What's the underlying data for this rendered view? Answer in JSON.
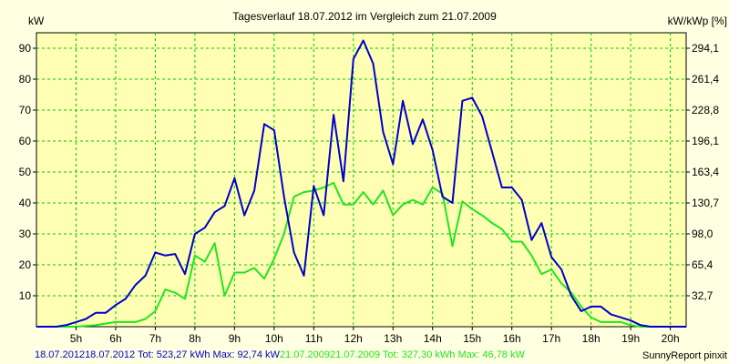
{
  "chart_data": {
    "type": "line",
    "title": "Tagesverlauf 18.07.2012 im Vergleich zum 21.07.2009",
    "ylabel_left": "kW",
    "ylabel_right": "kW/kWp [%]",
    "xlabel": "",
    "xlim": [
      4,
      20.4
    ],
    "ylim": [
      0,
      95
    ],
    "grid": true,
    "x_ticks": [
      5,
      6,
      7,
      8,
      9,
      10,
      11,
      12,
      13,
      14,
      15,
      16,
      17,
      18,
      19,
      20
    ],
    "x_tick_labels": [
      "5h",
      "6h",
      "7h",
      "8h",
      "9h",
      "10h",
      "11h",
      "12h",
      "13h",
      "14h",
      "15h",
      "16h",
      "17h",
      "18h",
      "19h",
      "20h"
    ],
    "y_ticks": [
      10,
      20,
      30,
      40,
      50,
      60,
      70,
      80,
      90
    ],
    "y_tick_labels": [
      "10",
      "20",
      "30",
      "40",
      "50",
      "60",
      "70",
      "80",
      "90"
    ],
    "y2_tick_labels": [
      "32,7",
      "65,4",
      "98,0",
      "130,7",
      "163,4",
      "196,1",
      "228,8",
      "261,4",
      "294,1"
    ],
    "series": [
      {
        "name": "18.07.2012",
        "color": "#0000c8",
        "x": [
          4.0,
          4.5,
          4.75,
          5.0,
          5.25,
          5.5,
          5.75,
          6.0,
          6.25,
          6.5,
          6.75,
          7.0,
          7.25,
          7.5,
          7.75,
          8.0,
          8.25,
          8.5,
          8.75,
          9.0,
          9.25,
          9.5,
          9.75,
          10.0,
          10.25,
          10.5,
          10.75,
          11.0,
          11.25,
          11.5,
          11.75,
          12.0,
          12.25,
          12.5,
          12.75,
          13.0,
          13.25,
          13.5,
          13.75,
          14.0,
          14.25,
          14.5,
          14.75,
          15.0,
          15.25,
          15.5,
          15.75,
          16.0,
          16.25,
          16.5,
          16.75,
          17.0,
          17.25,
          17.5,
          17.75,
          18.0,
          18.25,
          18.5,
          18.75,
          19.0,
          19.25,
          19.5,
          19.75,
          20.0,
          20.4
        ],
        "values": [
          0,
          0,
          0.5,
          1.5,
          2.5,
          4.5,
          4.5,
          7,
          9,
          13.5,
          16.5,
          24,
          23,
          23.5,
          17,
          30,
          32,
          37,
          39,
          48,
          36,
          44,
          65.5,
          63.5,
          42,
          24,
          16.5,
          45.5,
          36,
          68.5,
          47,
          86.5,
          92.5,
          85,
          63,
          52.5,
          73,
          59,
          67,
          57,
          42,
          40,
          73,
          74,
          68,
          56.5,
          45,
          45,
          41,
          28,
          33.5,
          22.5,
          18.5,
          10,
          5,
          6.5,
          6.5,
          4,
          3,
          2,
          0.5,
          0,
          0,
          0,
          0
        ],
        "total": "523,27",
        "max": "92,74"
      },
      {
        "name": "21.07.2009",
        "color": "#1ee61e",
        "x": [
          4.0,
          5.0,
          5.5,
          6.0,
          6.5,
          6.75,
          7.0,
          7.25,
          7.5,
          7.75,
          8.0,
          8.25,
          8.5,
          8.75,
          9.0,
          9.25,
          9.5,
          9.75,
          10.0,
          10.25,
          10.5,
          10.75,
          11.0,
          11.25,
          11.5,
          11.75,
          12.0,
          12.25,
          12.5,
          12.75,
          13.0,
          13.25,
          13.5,
          13.75,
          14.0,
          14.25,
          14.5,
          14.75,
          15.0,
          15.25,
          15.5,
          15.75,
          16.0,
          16.25,
          16.5,
          16.75,
          17.0,
          17.25,
          17.5,
          17.75,
          18.0,
          18.25,
          18.5,
          18.75,
          19.0,
          19.25,
          19.5,
          20.0,
          20.4
        ],
        "values": [
          0,
          0,
          0.5,
          1.5,
          1.5,
          2.5,
          5,
          12,
          11,
          9,
          23,
          21,
          27,
          10,
          17.5,
          17.5,
          19,
          15.5,
          22,
          30,
          42,
          43.5,
          44,
          45,
          46.5,
          39.5,
          39.5,
          43.5,
          39.5,
          44,
          36,
          39.5,
          41,
          39.5,
          45,
          43,
          26,
          40.5,
          38,
          36,
          33.5,
          31.5,
          27.5,
          27.5,
          23,
          17,
          18.5,
          14,
          11,
          6.5,
          3,
          1.5,
          1.5,
          1.5,
          0.5,
          0,
          0,
          0,
          0
        ],
        "total": "327,30",
        "max": "46,78"
      }
    ],
    "footer": {
      "series1_prefix": "18.07.2012 Tot: ",
      "series2_prefix": "21.07.2009 Tot: ",
      "max_prefix": " kWh Max: ",
      "unit": " kW",
      "credit": "SunnyReport pinxit"
    }
  }
}
